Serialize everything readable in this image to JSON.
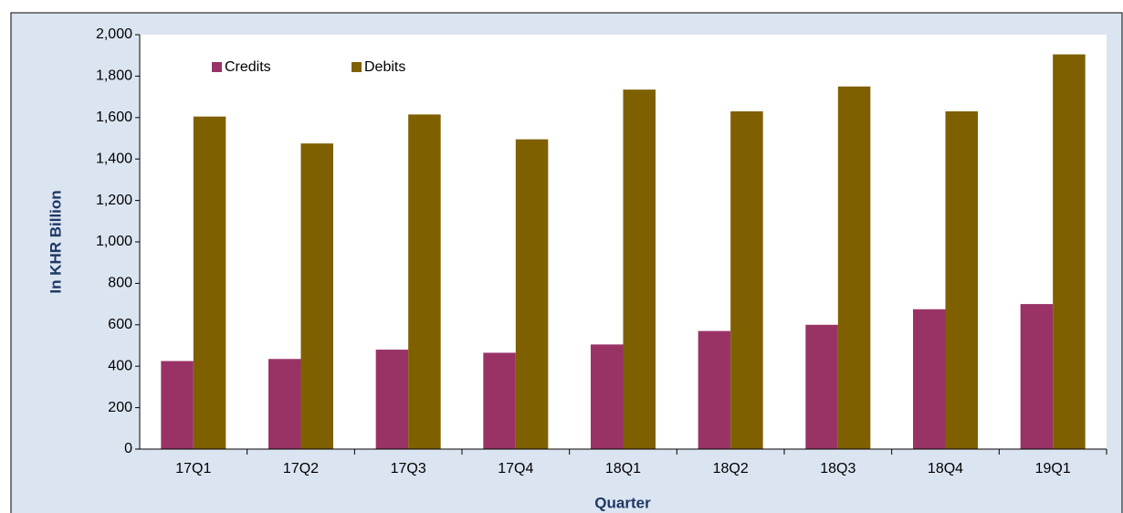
{
  "chart_data": {
    "type": "bar",
    "categories": [
      "17Q1",
      "17Q2",
      "17Q3",
      "17Q4",
      "18Q1",
      "18Q2",
      "18Q3",
      "18Q4",
      "19Q1"
    ],
    "series": [
      {
        "name": "Credits",
        "color": "#993366",
        "values": [
          425,
          435,
          480,
          465,
          505,
          570,
          600,
          675,
          700
        ]
      },
      {
        "name": "Debits",
        "color": "#7f6000",
        "values": [
          1605,
          1475,
          1615,
          1495,
          1735,
          1630,
          1750,
          1630,
          1905
        ]
      }
    ],
    "y_label": "In KHR Billion",
    "x_label": "Quarter",
    "ylim": [
      0,
      2000
    ],
    "yticks": [
      0,
      200,
      400,
      600,
      800,
      {
        "value": 1000,
        "label": "1,000"
      },
      {
        "value": 1200,
        "label": "1,200"
      },
      {
        "value": 1400,
        "label": "1,400"
      },
      {
        "value": 1600,
        "label": "1,600"
      },
      {
        "value": 1800,
        "label": "1,800"
      },
      {
        "value": 2000,
        "label": "2,000"
      }
    ],
    "legend": "top-left"
  }
}
